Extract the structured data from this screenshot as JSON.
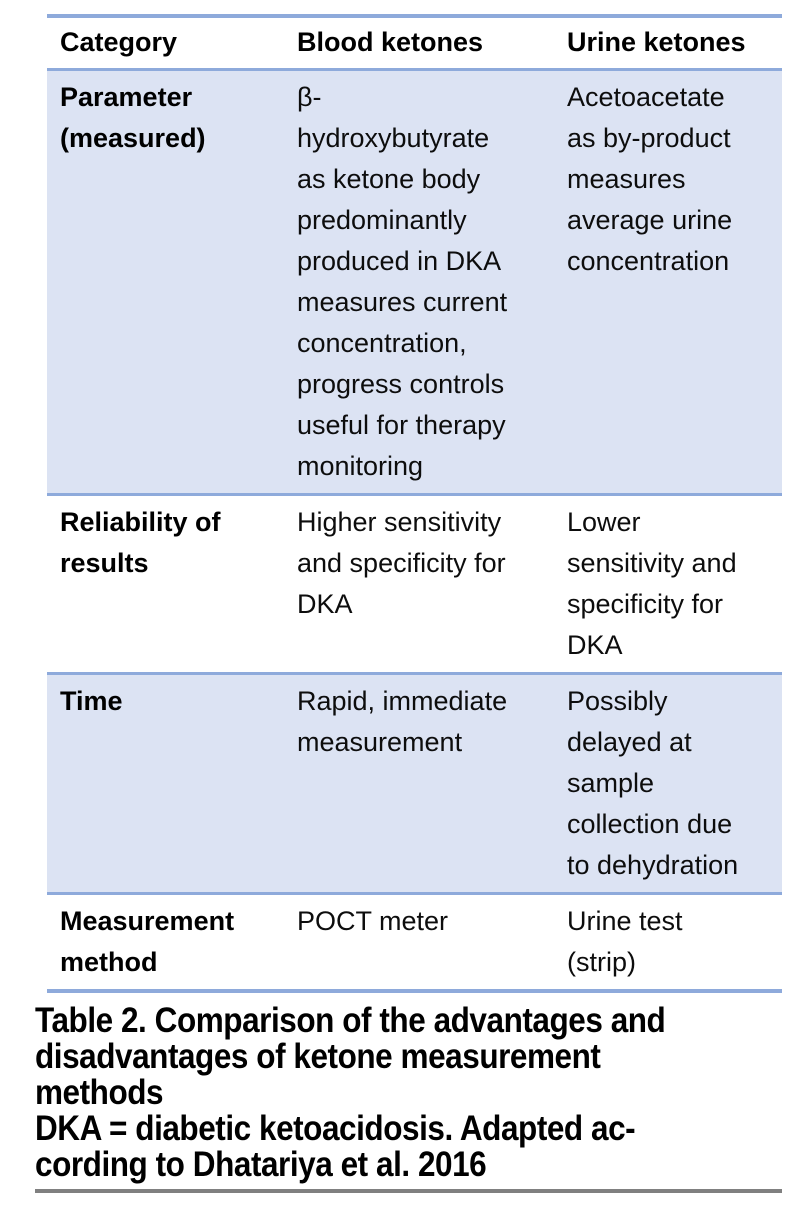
{
  "table": {
    "header": [
      "Category",
      "Blood ketones",
      "Urine ketones"
    ],
    "rows": [
      {
        "category": "Parameter (measured)",
        "blood": "β-\nhydroxybutyrate\nas ketone body\npredominantly\nproduced in DKA\nmeasures current\nconcentration,\nprogress controls\nuseful for therapy\nmonitoring",
        "urine": "Acetoacetate\nas by-product\nmeasures\naverage urine\nconcentration"
      },
      {
        "category": "Reliability of results",
        "blood": "Higher sensitivity\nand specificity for\nDKA",
        "urine": "Lower\nsensitivity and\nspecificity for\nDKA"
      },
      {
        "category": "Time",
        "blood": "Rapid, immediate\nmeasurement",
        "urine": "Possibly\ndelayed at\nsample\ncollection due\nto dehydration"
      },
      {
        "category": "Measurement method",
        "blood": "POCT meter",
        "urine": "Urine test\n(strip)"
      }
    ]
  },
  "caption": {
    "lines": [
      "Table 2. Comparison of the advantages and",
      "disadvantages of ketone measurement",
      "methods",
      "DKA = diabetic ketoacidosis. Adapted ac-",
      "cording to Dhatariya et al. 2016"
    ]
  },
  "colors": {
    "rule_blue": "#8EAADB",
    "row_shade": "#DCE3F3",
    "bottom_rule_gray": "#808080",
    "text": "#000000"
  }
}
